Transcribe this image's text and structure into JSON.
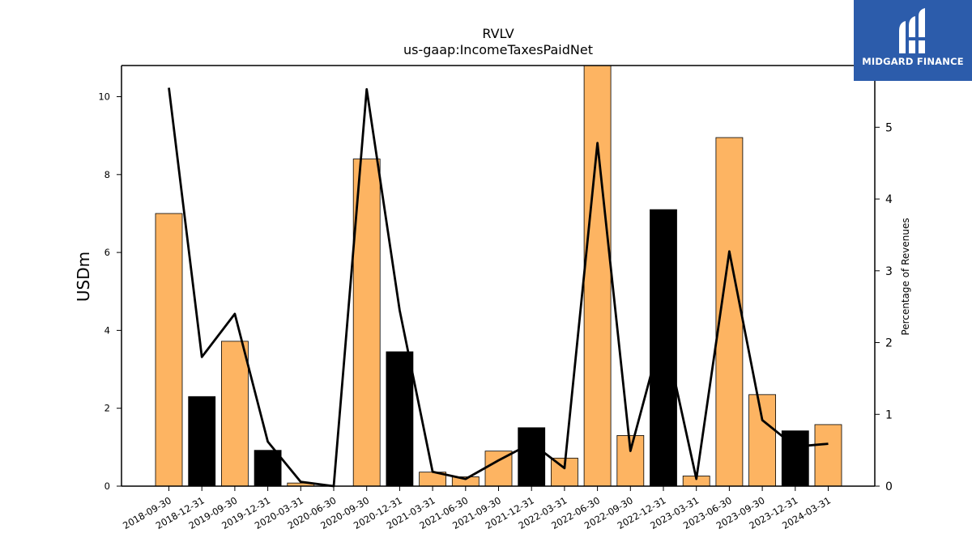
{
  "chart_data": {
    "type": "bar",
    "title": "RVLV",
    "subtitle": "us-gaap:IncomeTaxesPaidNet",
    "ylabel": "USDm",
    "y2label": "Percentage of Revenues",
    "ylim": [
      0,
      10.8
    ],
    "y2lim": [
      0,
      5.86
    ],
    "yticks": [
      0,
      2,
      4,
      6,
      8,
      10
    ],
    "y2ticks": [
      0,
      1,
      2,
      3,
      4,
      5
    ],
    "categories": [
      "2018-09-30",
      "2018-12-31",
      "2019-09-30",
      "2019-12-31",
      "2020-03-31",
      "2020-06-30",
      "2020-09-30",
      "2020-12-31",
      "2021-03-31",
      "2021-06-30",
      "2021-09-30",
      "2021-12-31",
      "2022-03-31",
      "2022-06-30",
      "2022-09-30",
      "2022-12-31",
      "2023-03-31",
      "2023-06-30",
      "2023-09-30",
      "2023-12-31",
      "2024-03-31"
    ],
    "bar_values": [
      7.0,
      2.3,
      3.72,
      0.92,
      0.08,
      0.0,
      8.4,
      3.45,
      0.36,
      0.24,
      0.9,
      1.5,
      0.72,
      10.8,
      1.3,
      7.1,
      0.26,
      8.95,
      2.35,
      1.42,
      1.58
    ],
    "bar_colors": [
      "#fdb462",
      "#000000",
      "#fdb462",
      "#000000",
      "#fdb462",
      "#fdb462",
      "#fdb462",
      "#000000",
      "#fdb462",
      "#fdb462",
      "#fdb462",
      "#000000",
      "#fdb462",
      "#fdb462",
      "#fdb462",
      "#000000",
      "#fdb462",
      "#fdb462",
      "#fdb462",
      "#000000",
      "#fdb462"
    ],
    "line_values": [
      5.55,
      1.8,
      2.4,
      0.62,
      0.06,
      0.0,
      5.53,
      2.45,
      0.2,
      0.1,
      0.36,
      0.6,
      0.25,
      4.78,
      0.49,
      2.2,
      0.1,
      3.27,
      0.92,
      0.55,
      0.59
    ],
    "line_color": "#000000",
    "grid": false
  },
  "logo": {
    "text": "MIDGARD FINANCE",
    "background": "#2c5cab"
  }
}
